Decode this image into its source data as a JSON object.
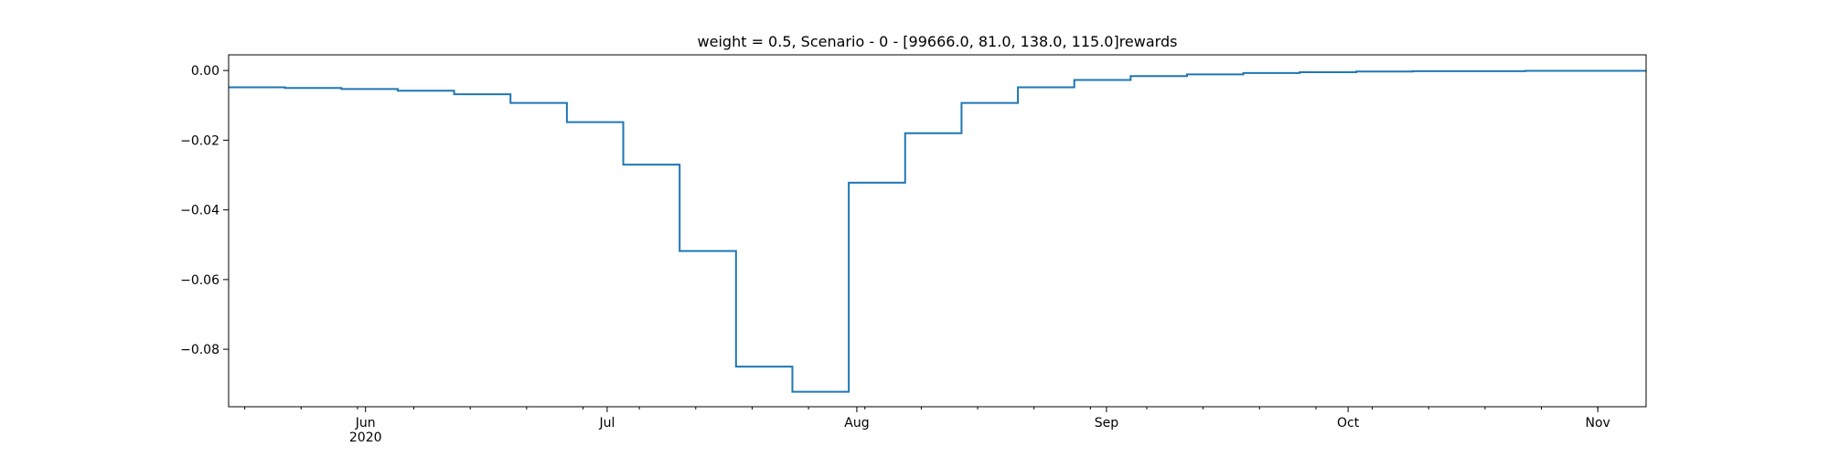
{
  "chart_data": {
    "type": "line",
    "step": "post",
    "title": "weight = 0.5, Scenario - 0 - [99666.0, 81.0, 138.0, 115.0]rewards",
    "xlabel": "",
    "ylabel": "",
    "x_axis_type": "date",
    "xlim": [
      "2020-05-15",
      "2020-11-07"
    ],
    "ylim": [
      -0.0965,
      0.0045
    ],
    "grid": false,
    "legend": "none",
    "line_color": "#1f77b4",
    "x_major_ticks": [
      {
        "date": "2020-06-01",
        "label": "Jun",
        "sublabel": "2020"
      },
      {
        "date": "2020-07-01",
        "label": "Jul",
        "sublabel": ""
      },
      {
        "date": "2020-08-01",
        "label": "Aug",
        "sublabel": ""
      },
      {
        "date": "2020-09-01",
        "label": "Sep",
        "sublabel": ""
      },
      {
        "date": "2020-10-01",
        "label": "Oct",
        "sublabel": ""
      },
      {
        "date": "2020-11-01",
        "label": "Nov",
        "sublabel": ""
      }
    ],
    "y_ticks": [
      {
        "value": 0.0,
        "label": "0.00"
      },
      {
        "value": -0.02,
        "label": "−0.02"
      },
      {
        "value": -0.04,
        "label": "−0.04"
      },
      {
        "value": -0.06,
        "label": "−0.06"
      },
      {
        "value": -0.08,
        "label": "−0.08"
      }
    ],
    "series": [
      {
        "x": [
          "2020-05-15",
          "2020-05-22",
          "2020-05-29",
          "2020-06-05",
          "2020-06-12",
          "2020-06-19",
          "2020-06-26",
          "2020-07-03",
          "2020-07-10",
          "2020-07-17",
          "2020-07-24",
          "2020-07-31",
          "2020-08-07",
          "2020-08-14",
          "2020-08-21",
          "2020-08-28",
          "2020-09-04",
          "2020-09-11",
          "2020-09-18",
          "2020-09-25",
          "2020-10-02",
          "2020-10-09",
          "2020-10-16",
          "2020-10-23",
          "2020-10-30",
          "2020-11-07"
        ],
        "y": [
          -0.0048,
          -0.005,
          -0.0053,
          -0.0058,
          -0.0068,
          -0.0093,
          -0.0148,
          -0.027,
          -0.0518,
          -0.085,
          -0.0922,
          -0.0322,
          -0.018,
          -0.0093,
          -0.0048,
          -0.0027,
          -0.0016,
          -0.0011,
          -0.0007,
          -0.0005,
          -0.0003,
          -0.0002,
          -0.0002,
          -0.0001,
          -0.0001,
          -0.0001
        ]
      }
    ]
  }
}
